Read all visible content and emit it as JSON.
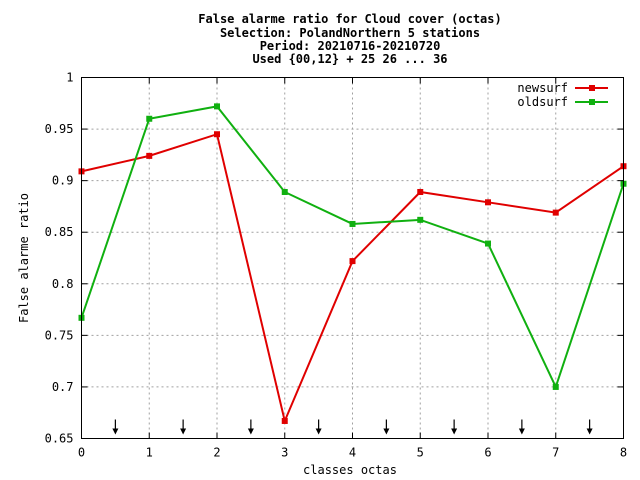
{
  "chart_data": {
    "type": "line",
    "title_lines": [
      "False alarme ratio  for Cloud cover (octas)",
      "Selection: PolandNorthern      5 stations",
      "Period: 20210716-20210720",
      "Used {00,12} + 25 26 ... 36"
    ],
    "xlabel": "classes octas",
    "ylabel": "False alarme ratio",
    "xlim": [
      0,
      8
    ],
    "ylim": [
      0.65,
      1
    ],
    "x_ticks": [
      0,
      1,
      2,
      3,
      4,
      5,
      6,
      7,
      8
    ],
    "x_tick_labels": [
      "0",
      "1",
      "2",
      "3",
      "4",
      "5",
      "6",
      "7",
      "8"
    ],
    "y_ticks": [
      0.65,
      0.7,
      0.75,
      0.8,
      0.85,
      0.9,
      0.95,
      1
    ],
    "y_tick_labels": [
      "0.65",
      "0.7",
      "0.75",
      "0.8",
      "0.85",
      "0.9",
      "0.95",
      "1"
    ],
    "grid": true,
    "legend_position": "top-right",
    "arrow_markers_x": [
      0.5,
      1.5,
      2.5,
      3.5,
      4.5,
      5.5,
      6.5,
      7.5
    ],
    "series": [
      {
        "name": "newsurf",
        "color": "#e00000",
        "x": [
          0,
          1,
          2,
          3,
          4,
          5,
          6,
          7,
          8
        ],
        "values": [
          0.909,
          0.924,
          0.945,
          0.667,
          0.822,
          0.889,
          0.879,
          0.869,
          0.914
        ]
      },
      {
        "name": "oldsurf",
        "color": "#10b010",
        "x": [
          0,
          1,
          2,
          3,
          4,
          5,
          6,
          7,
          8
        ],
        "values": [
          0.767,
          0.96,
          0.972,
          0.889,
          0.858,
          0.862,
          0.839,
          0.7,
          0.897
        ]
      }
    ]
  }
}
